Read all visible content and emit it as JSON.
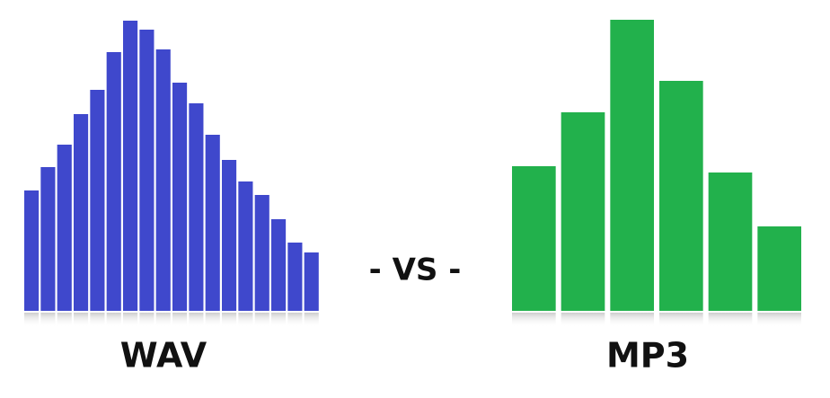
{
  "chart_data": [
    {
      "type": "bar",
      "title": "WAV",
      "color": "#3f48cc",
      "categories": [
        null,
        null,
        null,
        null,
        null,
        null,
        null,
        null,
        null,
        null,
        null,
        null,
        null,
        null,
        null,
        null,
        null,
        null
      ],
      "values": [
        134,
        160,
        185,
        219,
        246,
        288,
        323,
        313,
        291,
        254,
        231,
        196,
        168,
        144,
        129,
        102,
        76,
        65
      ],
      "ylim": [
        0,
        330
      ]
    },
    {
      "type": "bar",
      "title": "MP3",
      "color": "#22b14c",
      "categories": [
        null,
        null,
        null,
        null,
        null,
        null
      ],
      "values": [
        161,
        221,
        324,
        256,
        154,
        94
      ],
      "ylim": [
        0,
        330
      ]
    }
  ],
  "separator": "- VS -"
}
